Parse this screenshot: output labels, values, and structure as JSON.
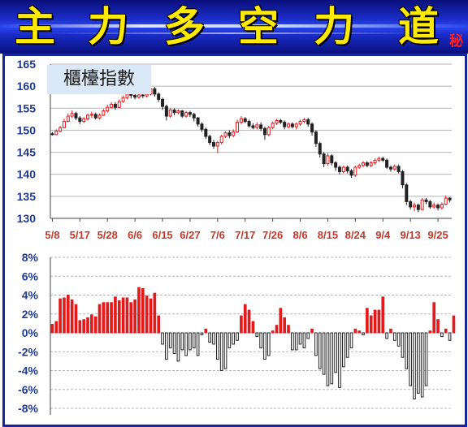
{
  "banner": {
    "chars": [
      "主",
      "力",
      "多",
      "空",
      "力",
      "道"
    ],
    "badge": "秘"
  },
  "colors": {
    "up": "#e31a1c",
    "down": "#222222",
    "axis": "#1f3a93",
    "xlabel": "#c0392b",
    "banner": "#1a2cc8",
    "title_text": "#ffea00"
  },
  "chart_data": [
    {
      "type": "candlestick",
      "title": "櫃檯指數",
      "ylim": [
        130,
        165
      ],
      "yticks": [
        130,
        135,
        140,
        145,
        150,
        155,
        160,
        165
      ],
      "xtick_labels": [
        "5/8",
        "5/17",
        "5/28",
        "6/6",
        "6/15",
        "6/27",
        "7/6",
        "7/17",
        "7/26",
        "8/6",
        "8/15",
        "8/24",
        "9/4",
        "9/13",
        "9/25"
      ],
      "xtick_index": [
        0,
        7,
        14,
        21,
        28,
        35,
        42,
        49,
        56,
        63,
        70,
        77,
        84,
        91,
        98
      ],
      "grid": true,
      "candles": [
        [
          149.2,
          149.0,
          149.6,
          148.8
        ],
        [
          149.0,
          149.8,
          150.2,
          148.9
        ],
        [
          149.8,
          150.6,
          151.0,
          149.5
        ],
        [
          150.6,
          152.0,
          152.6,
          150.4
        ],
        [
          152.0,
          153.2,
          153.8,
          151.8
        ],
        [
          153.2,
          153.8,
          154.5,
          152.8
        ],
        [
          153.8,
          152.8,
          154.2,
          152.3
        ],
        [
          152.8,
          152.0,
          153.2,
          151.4
        ],
        [
          152.0,
          152.6,
          153.0,
          151.6
        ],
        [
          152.6,
          153.4,
          153.8,
          152.2
        ],
        [
          153.4,
          153.6,
          154.2,
          152.8
        ],
        [
          153.6,
          152.8,
          154.0,
          152.4
        ],
        [
          152.8,
          153.4,
          153.8,
          152.4
        ],
        [
          153.4,
          154.4,
          154.8,
          153.2
        ],
        [
          154.4,
          155.2,
          155.8,
          154.0
        ],
        [
          155.2,
          155.9,
          156.4,
          154.9
        ],
        [
          155.9,
          155.2,
          156.4,
          154.6
        ],
        [
          155.2,
          156.5,
          157.0,
          155.0
        ],
        [
          156.5,
          157.4,
          157.9,
          156.2
        ],
        [
          157.4,
          158.2,
          158.8,
          157.0
        ],
        [
          158.2,
          157.9,
          158.6,
          157.2
        ],
        [
          157.9,
          157.5,
          158.5,
          157.0
        ],
        [
          157.5,
          158.0,
          158.4,
          157.1
        ],
        [
          158.0,
          157.8,
          158.4,
          157.3
        ],
        [
          157.8,
          158.2,
          158.6,
          157.4
        ],
        [
          158.2,
          159.4,
          160.2,
          157.9
        ],
        [
          159.4,
          158.2,
          159.8,
          157.6
        ],
        [
          158.2,
          157.0,
          158.6,
          156.4
        ],
        [
          157.0,
          155.4,
          157.4,
          154.6
        ],
        [
          155.4,
          153.2,
          155.8,
          152.2
        ],
        [
          153.2,
          154.6,
          155.0,
          152.8
        ],
        [
          154.6,
          154.0,
          155.0,
          153.4
        ],
        [
          154.0,
          154.4,
          154.8,
          153.6
        ],
        [
          154.4,
          153.2,
          154.6,
          152.8
        ],
        [
          153.2,
          154.0,
          154.4,
          152.8
        ],
        [
          154.0,
          153.6,
          154.4,
          153.0
        ],
        [
          153.6,
          152.8,
          154.0,
          152.0
        ],
        [
          152.8,
          151.4,
          153.0,
          150.8
        ],
        [
          151.4,
          150.2,
          151.8,
          149.6
        ],
        [
          150.2,
          148.6,
          150.6,
          148.0
        ],
        [
          148.6,
          147.2,
          149.0,
          146.6
        ],
        [
          147.2,
          146.4,
          147.8,
          145.8
        ],
        [
          146.4,
          147.2,
          147.6,
          144.8
        ],
        [
          147.2,
          148.6,
          149.0,
          146.8
        ],
        [
          148.6,
          149.4,
          149.8,
          148.2
        ],
        [
          149.4,
          148.8,
          150.0,
          148.2
        ],
        [
          148.8,
          149.6,
          150.2,
          148.4
        ],
        [
          149.6,
          151.8,
          152.4,
          149.4
        ],
        [
          151.8,
          152.6,
          153.2,
          151.4
        ],
        [
          152.6,
          152.0,
          153.0,
          151.6
        ],
        [
          152.0,
          151.0,
          152.4,
          150.6
        ],
        [
          151.0,
          150.6,
          151.6,
          150.2
        ],
        [
          150.6,
          151.2,
          151.8,
          150.2
        ],
        [
          151.2,
          150.4,
          151.8,
          149.8
        ],
        [
          150.4,
          149.0,
          150.8,
          147.8
        ],
        [
          149.0,
          150.6,
          151.0,
          148.6
        ],
        [
          150.6,
          151.6,
          152.0,
          150.2
        ],
        [
          151.6,
          152.2,
          152.6,
          151.2
        ],
        [
          152.2,
          151.8,
          152.6,
          151.4
        ],
        [
          151.8,
          150.8,
          152.2,
          150.2
        ],
        [
          150.8,
          151.4,
          151.8,
          150.4
        ],
        [
          151.4,
          150.8,
          151.8,
          150.4
        ],
        [
          150.8,
          151.4,
          151.8,
          150.2
        ],
        [
          151.4,
          152.0,
          152.4,
          151.0
        ],
        [
          152.0,
          152.4,
          152.8,
          151.6
        ],
        [
          152.4,
          151.4,
          152.8,
          150.8
        ],
        [
          151.4,
          149.6,
          151.8,
          148.8
        ],
        [
          149.6,
          147.0,
          150.0,
          146.2
        ],
        [
          147.0,
          144.6,
          147.4,
          143.8
        ],
        [
          144.6,
          142.4,
          145.0,
          141.6
        ],
        [
          142.4,
          144.2,
          144.8,
          142.0
        ],
        [
          144.2,
          142.6,
          144.6,
          142.0
        ],
        [
          142.6,
          141.6,
          143.0,
          140.8
        ],
        [
          141.6,
          140.6,
          142.0,
          140.0
        ],
        [
          140.6,
          141.6,
          142.0,
          140.2
        ],
        [
          141.6,
          140.8,
          142.0,
          140.2
        ],
        [
          140.8,
          139.8,
          141.2,
          139.2
        ],
        [
          139.8,
          141.6,
          142.0,
          139.4
        ],
        [
          141.6,
          142.0,
          142.4,
          141.2
        ],
        [
          142.0,
          142.6,
          143.0,
          141.6
        ],
        [
          142.6,
          142.0,
          143.0,
          141.6
        ],
        [
          142.0,
          142.6,
          143.0,
          141.6
        ],
        [
          142.6,
          143.2,
          143.6,
          142.2
        ],
        [
          143.2,
          143.6,
          144.0,
          142.8
        ],
        [
          143.6,
          143.2,
          144.0,
          142.8
        ],
        [
          143.2,
          141.6,
          143.6,
          141.2
        ],
        [
          141.6,
          141.2,
          142.0,
          140.6
        ],
        [
          141.2,
          141.8,
          142.2,
          140.8
        ],
        [
          141.8,
          140.6,
          142.2,
          140.2
        ],
        [
          140.6,
          137.6,
          141.0,
          136.8
        ],
        [
          137.6,
          133.8,
          138.0,
          133.0
        ],
        [
          133.8,
          132.6,
          134.2,
          132.0
        ],
        [
          132.6,
          133.0,
          133.6,
          131.6
        ],
        [
          133.0,
          132.0,
          133.4,
          131.4
        ],
        [
          132.0,
          134.2,
          134.6,
          131.8
        ],
        [
          134.2,
          133.8,
          134.6,
          133.2
        ],
        [
          133.8,
          132.6,
          134.2,
          132.2
        ],
        [
          132.6,
          133.0,
          133.6,
          132.2
        ],
        [
          133.0,
          132.4,
          133.4,
          131.8
        ],
        [
          132.4,
          133.2,
          133.6,
          132.0
        ],
        [
          133.2,
          134.6,
          135.2,
          133.0
        ],
        [
          134.6,
          134.2,
          134.8,
          133.6
        ]
      ]
    },
    {
      "type": "bar",
      "ylim": [
        -8,
        8
      ],
      "yticks": [
        "8%",
        "6%",
        "4%",
        "2%",
        "0%",
        "-2%",
        "-4%",
        "-6%",
        "-8%"
      ],
      "grid": true,
      "values": [
        0.9,
        1.2,
        3.6,
        3.7,
        4.0,
        3.5,
        3.0,
        1.3,
        1.4,
        1.6,
        1.9,
        1.7,
        3.0,
        3.2,
        3.2,
        3.2,
        3.8,
        3.4,
        3.7,
        3.7,
        3.2,
        3.5,
        4.8,
        4.7,
        3.9,
        3.6,
        4.2,
        1.8,
        -1.2,
        -2.8,
        -1.6,
        -2.2,
        -3.0,
        -1.8,
        -2.4,
        -1.8,
        -1.6,
        -2.4,
        -0.2,
        0.4,
        -1.0,
        -1.2,
        -2.8,
        -4.0,
        -3.8,
        -1.6,
        -1.2,
        -0.8,
        1.8,
        3.0,
        2.4,
        1.2,
        -0.4,
        -1.6,
        -2.8,
        -2.4,
        0.2,
        0.8,
        2.6,
        1.6,
        0.8,
        -1.8,
        -1.8,
        -1.2,
        -1.6,
        -0.6,
        0.4,
        -2.4,
        -3.8,
        -4.4,
        -5.6,
        -5.4,
        -4.2,
        -5.8,
        -3.6,
        -2.6,
        -1.6,
        0.4,
        0.2,
        -0.2,
        2.6,
        1.8,
        2.4,
        2.4,
        3.8,
        -0.6,
        0.4,
        -0.8,
        -1.4,
        -2.6,
        -3.8,
        -5.6,
        -7.0,
        -6.4,
        -6.8,
        -5.6,
        0.2,
        3.2,
        1.4,
        -0.4,
        0.4,
        -0.8,
        1.8
      ]
    }
  ]
}
